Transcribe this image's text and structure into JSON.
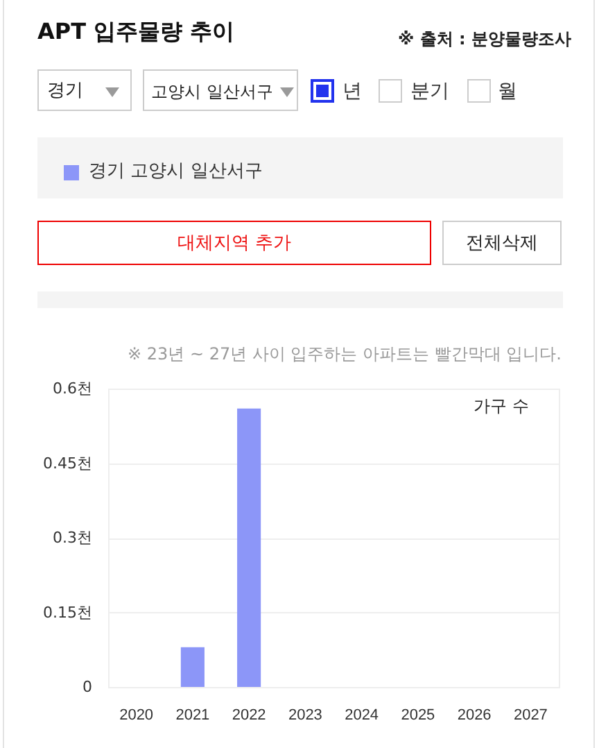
{
  "chart_data": {
    "type": "bar",
    "title": "APT 입주물량 추이",
    "ylabel": "가구 수",
    "categories": [
      "2020",
      "2021",
      "2022",
      "2023",
      "2024",
      "2025",
      "2026",
      "2027"
    ],
    "series": [
      {
        "name": "경기 고양시 일산서구",
        "color": "#8c96f8",
        "values": [
          0,
          0.08,
          0.56,
          0,
          0,
          0,
          0,
          0
        ]
      }
    ],
    "ylim": [
      0,
      0.6
    ],
    "yticks": [
      0,
      {
        "value": 0.15,
        "label": "0.15천"
      },
      {
        "value": 0.3,
        "label": "0.3천"
      },
      {
        "value": 0.45,
        "label": "0.45천"
      },
      {
        "value": 0.6,
        "label": "0.6천"
      }
    ],
    "grid": "y",
    "legend": "top",
    "annotations": [
      "※ 출처 : 분양물량조사",
      "경기",
      "고양시 일산서구",
      "년",
      "분기",
      "월",
      "대체지역 추가",
      "전체삭제",
      "※ 23년 ~ 27년 사이 입주하는 아파트는 빨간막대 입니다."
    ]
  }
}
